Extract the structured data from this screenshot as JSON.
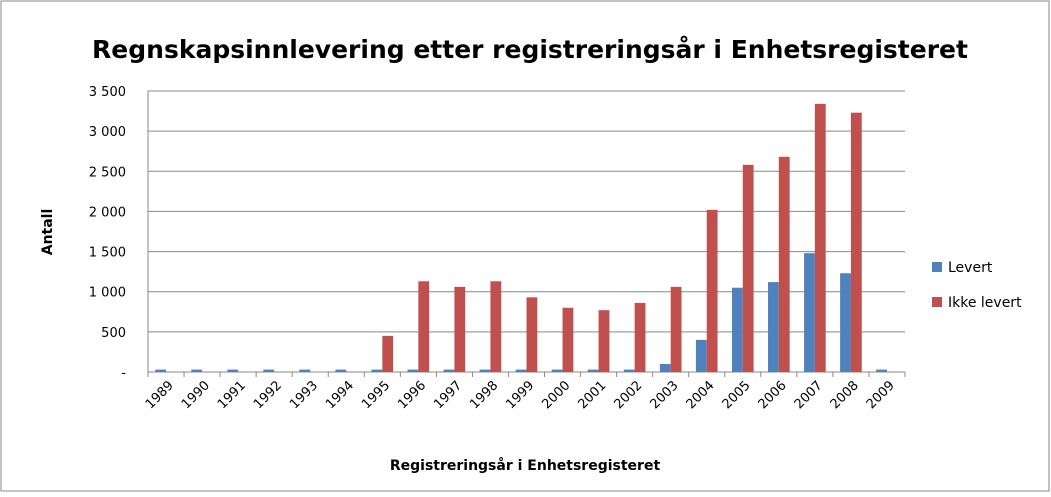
{
  "chart_data": {
    "type": "bar",
    "title": "Regnskapsinnlevering etter registreringsår i Enhetsregisteret",
    "x_label": "Registreringsår i Enhetsregisteret",
    "y_label": "Antall",
    "categories": [
      "1989",
      "1990",
      "1991",
      "1992",
      "1993",
      "1994",
      "1995",
      "1996",
      "1997",
      "1998",
      "1999",
      "2000",
      "2001",
      "2002",
      "2003",
      "2004",
      "2005",
      "2006",
      "2007",
      "2008",
      "2009"
    ],
    "series": [
      {
        "name": "Levert",
        "color": "#4f81bd",
        "values": [
          30,
          30,
          30,
          30,
          30,
          30,
          30,
          30,
          30,
          30,
          30,
          30,
          30,
          30,
          100,
          400,
          1050,
          1120,
          1480,
          1230,
          30
        ]
      },
      {
        "name": "Ikke levert",
        "color": "#c0504d",
        "values": [
          0,
          0,
          0,
          0,
          0,
          0,
          450,
          1130,
          1060,
          1130,
          930,
          800,
          770,
          860,
          1060,
          2020,
          2580,
          2680,
          3340,
          3230,
          0
        ]
      }
    ],
    "ylim": [
      0,
      3500
    ],
    "yticks": [
      {
        "value": 0,
        "label": "-"
      },
      500,
      {
        "value": 1000,
        "label": "1 000"
      },
      {
        "value": 1500,
        "label": "1 500"
      },
      {
        "value": 2000,
        "label": "2 000"
      },
      {
        "value": 2500,
        "label": "2 500"
      },
      {
        "value": 3000,
        "label": "3 000"
      },
      {
        "value": 3500,
        "label": "3 500"
      }
    ],
    "grid": true,
    "legend": "right"
  }
}
